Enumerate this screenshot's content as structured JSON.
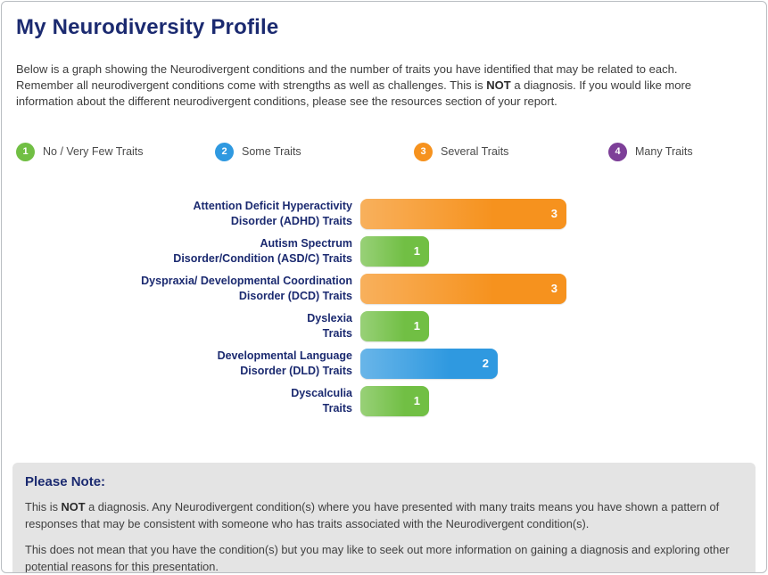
{
  "page": {
    "title": "My Neurodiversity Profile",
    "intro_part1": "Below is a graph showing the Neurodivergent conditions and the number of traits you have identified that may be related to each. Remember all neurodivergent conditions come with strengths as well as challenges. This is ",
    "intro_bold": "NOT",
    "intro_part2": " a diagnosis. If you would like more information about the different neurodivergent conditions, please see the resources section of your report."
  },
  "legend": [
    {
      "value": "1",
      "label": "No / Very Few Traits",
      "color": "#71bf44"
    },
    {
      "value": "2",
      "label": "Some Traits",
      "color": "#2f99e0"
    },
    {
      "value": "3",
      "label": "Several Traits",
      "color": "#f6921e"
    },
    {
      "value": "4",
      "label": "Many Traits",
      "color": "#7d3f98"
    }
  ],
  "chart_data": {
    "type": "bar",
    "orientation": "horizontal",
    "title": "My Neurodiversity Profile",
    "categories": [
      "Attention Deficit Hyperactivity\nDisorder (ADHD) Traits",
      "Autism Spectrum\nDisorder/Condition (ASD/C) Traits",
      "Dyspraxia/ Developmental Coordination\nDisorder (DCD) Traits",
      "Dyslexia\nTraits",
      "Developmental Language\nDisorder (DLD) Traits",
      "Dyscalculia\nTraits"
    ],
    "values": [
      3,
      1,
      3,
      1,
      2,
      1
    ],
    "bar_colors": [
      "#f6921e",
      "#71bf44",
      "#f6921e",
      "#71bf44",
      "#2f99e0",
      "#71bf44"
    ],
    "xlim": [
      0,
      4
    ],
    "value_labels": true,
    "legend_position": "top",
    "grid": false,
    "scale_labels": {
      "1": "No / Very Few Traits",
      "2": "Some Traits",
      "3": "Several Traits",
      "4": "Many Traits"
    }
  },
  "note": {
    "heading": "Please Note:",
    "p1_part1": "This is ",
    "p1_bold": "NOT",
    "p1_part2": " a diagnosis. Any Neurodivergent condition(s) where you have presented with many traits means you have shown a pattern of responses that may be consistent with someone who has traits associated with the Neurodivergent condition(s).",
    "p2": "This does not mean that you have the condition(s) but you may like to seek out more information on gaining a diagnosis and exploring other potential reasons for this presentation."
  }
}
